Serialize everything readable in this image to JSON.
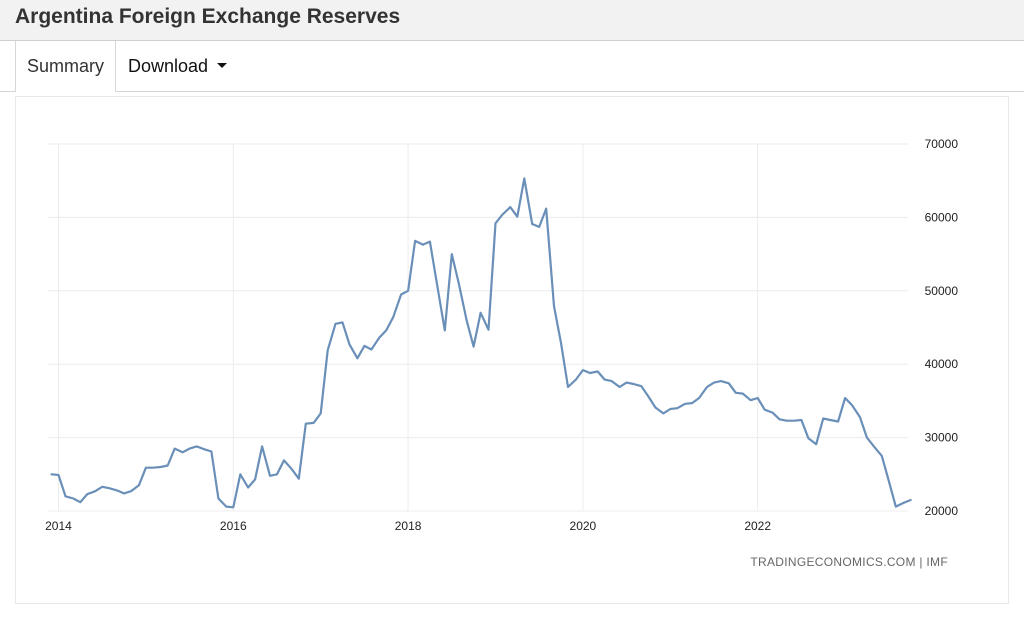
{
  "header": {
    "title": "Argentina Foreign Exchange Reserves"
  },
  "tabs": {
    "summary_label": "Summary",
    "download_label": "Download",
    "download_icon": "caret-down-icon"
  },
  "colors": {
    "line": "#6a8fb8",
    "grid": "#ececec",
    "header_bg": "#f2f2f2"
  },
  "chart_data": {
    "type": "line",
    "title": "",
    "xlabel": "",
    "ylabel": "",
    "source": "TRADINGECONOMICS.COM  |  IMF",
    "ylim": [
      20000,
      70000
    ],
    "xlim": [
      2013.88,
      2023.72
    ],
    "y_ticks": [
      20000,
      30000,
      40000,
      50000,
      60000,
      70000
    ],
    "x_ticks": [
      2014,
      2016,
      2018,
      2020,
      2022
    ],
    "y_axis_position": "right",
    "grid": true,
    "legend": "none",
    "series": [
      {
        "points": [
          [
            2013.92,
            25000
          ],
          [
            2014.0,
            24900
          ],
          [
            2014.08,
            22000
          ],
          [
            2014.17,
            21700
          ],
          [
            2014.25,
            21200
          ],
          [
            2014.33,
            22300
          ],
          [
            2014.42,
            22700
          ],
          [
            2014.5,
            23300
          ],
          [
            2014.58,
            23100
          ],
          [
            2014.67,
            22800
          ],
          [
            2014.75,
            22400
          ],
          [
            2014.83,
            22700
          ],
          [
            2014.92,
            23500
          ],
          [
            2015.0,
            25900
          ],
          [
            2015.08,
            25900
          ],
          [
            2015.17,
            26000
          ],
          [
            2015.25,
            26200
          ],
          [
            2015.33,
            28500
          ],
          [
            2015.42,
            28000
          ],
          [
            2015.5,
            28500
          ],
          [
            2015.58,
            28800
          ],
          [
            2015.67,
            28400
          ],
          [
            2015.75,
            28100
          ],
          [
            2015.83,
            21700
          ],
          [
            2015.92,
            20600
          ],
          [
            2016.0,
            20500
          ],
          [
            2016.08,
            25000
          ],
          [
            2016.17,
            23200
          ],
          [
            2016.25,
            24300
          ],
          [
            2016.33,
            28800
          ],
          [
            2016.42,
            24800
          ],
          [
            2016.5,
            25000
          ],
          [
            2016.58,
            26900
          ],
          [
            2016.67,
            25700
          ],
          [
            2016.75,
            24400
          ],
          [
            2016.83,
            31900
          ],
          [
            2016.92,
            32000
          ],
          [
            2017.0,
            33300
          ],
          [
            2017.08,
            41900
          ],
          [
            2017.17,
            45500
          ],
          [
            2017.25,
            45700
          ],
          [
            2017.33,
            42700
          ],
          [
            2017.42,
            40800
          ],
          [
            2017.5,
            42500
          ],
          [
            2017.58,
            42000
          ],
          [
            2017.67,
            43600
          ],
          [
            2017.75,
            44600
          ],
          [
            2017.83,
            46400
          ],
          [
            2017.92,
            49500
          ],
          [
            2018.0,
            50000
          ],
          [
            2018.08,
            56800
          ],
          [
            2018.17,
            56300
          ],
          [
            2018.25,
            56700
          ],
          [
            2018.33,
            51000
          ],
          [
            2018.42,
            44600
          ],
          [
            2018.5,
            55000
          ],
          [
            2018.58,
            51000
          ],
          [
            2018.67,
            46000
          ],
          [
            2018.75,
            42400
          ],
          [
            2018.83,
            47000
          ],
          [
            2018.92,
            44700
          ],
          [
            2019.0,
            59200
          ],
          [
            2019.08,
            60400
          ],
          [
            2019.17,
            61400
          ],
          [
            2019.25,
            60100
          ],
          [
            2019.33,
            65300
          ],
          [
            2019.42,
            59100
          ],
          [
            2019.5,
            58700
          ],
          [
            2019.58,
            61200
          ],
          [
            2019.67,
            47900
          ],
          [
            2019.75,
            42900
          ],
          [
            2019.83,
            36900
          ],
          [
            2019.92,
            37900
          ],
          [
            2020.0,
            39200
          ],
          [
            2020.08,
            38800
          ],
          [
            2020.17,
            39000
          ],
          [
            2020.25,
            37900
          ],
          [
            2020.33,
            37700
          ],
          [
            2020.42,
            36900
          ],
          [
            2020.5,
            37500
          ],
          [
            2020.58,
            37300
          ],
          [
            2020.67,
            37000
          ],
          [
            2020.75,
            35600
          ],
          [
            2020.83,
            34100
          ],
          [
            2020.92,
            33300
          ],
          [
            2021.0,
            33900
          ],
          [
            2021.08,
            34000
          ],
          [
            2021.17,
            34600
          ],
          [
            2021.25,
            34700
          ],
          [
            2021.33,
            35400
          ],
          [
            2021.42,
            36900
          ],
          [
            2021.5,
            37500
          ],
          [
            2021.58,
            37700
          ],
          [
            2021.67,
            37400
          ],
          [
            2021.75,
            36100
          ],
          [
            2021.83,
            36000
          ],
          [
            2021.92,
            35100
          ],
          [
            2022.0,
            35400
          ],
          [
            2022.08,
            33800
          ],
          [
            2022.17,
            33400
          ],
          [
            2022.25,
            32500
          ],
          [
            2022.33,
            32300
          ],
          [
            2022.42,
            32300
          ],
          [
            2022.5,
            32400
          ],
          [
            2022.58,
            29900
          ],
          [
            2022.67,
            29100
          ],
          [
            2022.75,
            32600
          ],
          [
            2022.83,
            32400
          ],
          [
            2022.92,
            32200
          ],
          [
            2023.0,
            35400
          ],
          [
            2023.08,
            34400
          ],
          [
            2023.17,
            32800
          ],
          [
            2023.25,
            30000
          ],
          [
            2023.33,
            28800
          ],
          [
            2023.42,
            27500
          ],
          [
            2023.5,
            24100
          ],
          [
            2023.58,
            20600
          ],
          [
            2023.67,
            21100
          ],
          [
            2023.75,
            21500
          ]
        ]
      }
    ]
  }
}
